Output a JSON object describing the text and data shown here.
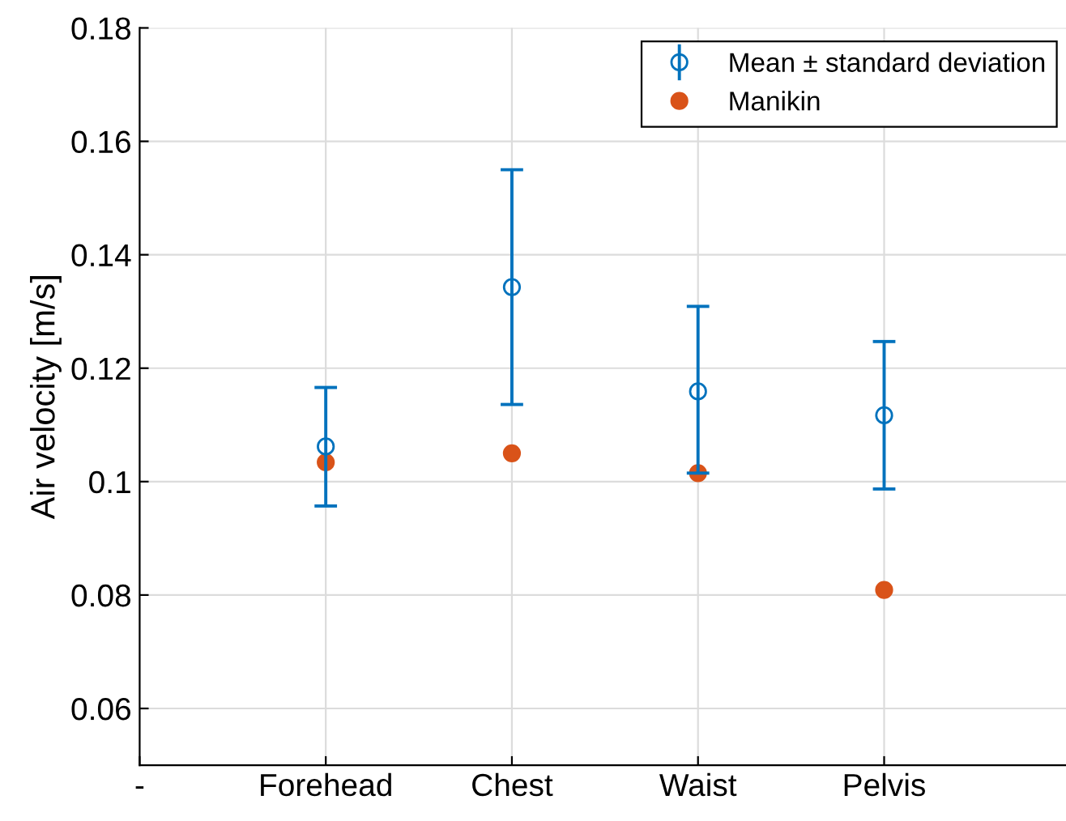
{
  "chart_data": {
    "type": "scatter",
    "ylabel": "Air velocity [m/s]",
    "categories": [
      "-",
      "Forehead",
      "Chest",
      "Waist",
      "Pelvis",
      null
    ],
    "series": [
      {
        "name": "Mean ± standard deviation",
        "color": "#0072bd",
        "marker": "circle",
        "values": [
          null,
          0.1062,
          0.1343,
          0.1159,
          0.1117,
          null
        ],
        "errors": [
          null,
          [
            0.0957,
            0.1166
          ],
          [
            0.1136,
            0.155
          ],
          [
            0.1015,
            0.1309
          ],
          [
            0.0987,
            0.1247
          ],
          null
        ]
      },
      {
        "name": "Manikin",
        "color": "#d95319",
        "marker": "circle",
        "values": [
          null,
          0.1034,
          0.105,
          0.1015,
          0.0809,
          null
        ]
      }
    ],
    "ylim": [
      0.05,
      0.18
    ],
    "yticks": [
      0.06,
      0.08,
      0.1,
      0.12,
      0.14,
      0.16,
      0.18
    ],
    "grid": true,
    "legend": "top right"
  }
}
